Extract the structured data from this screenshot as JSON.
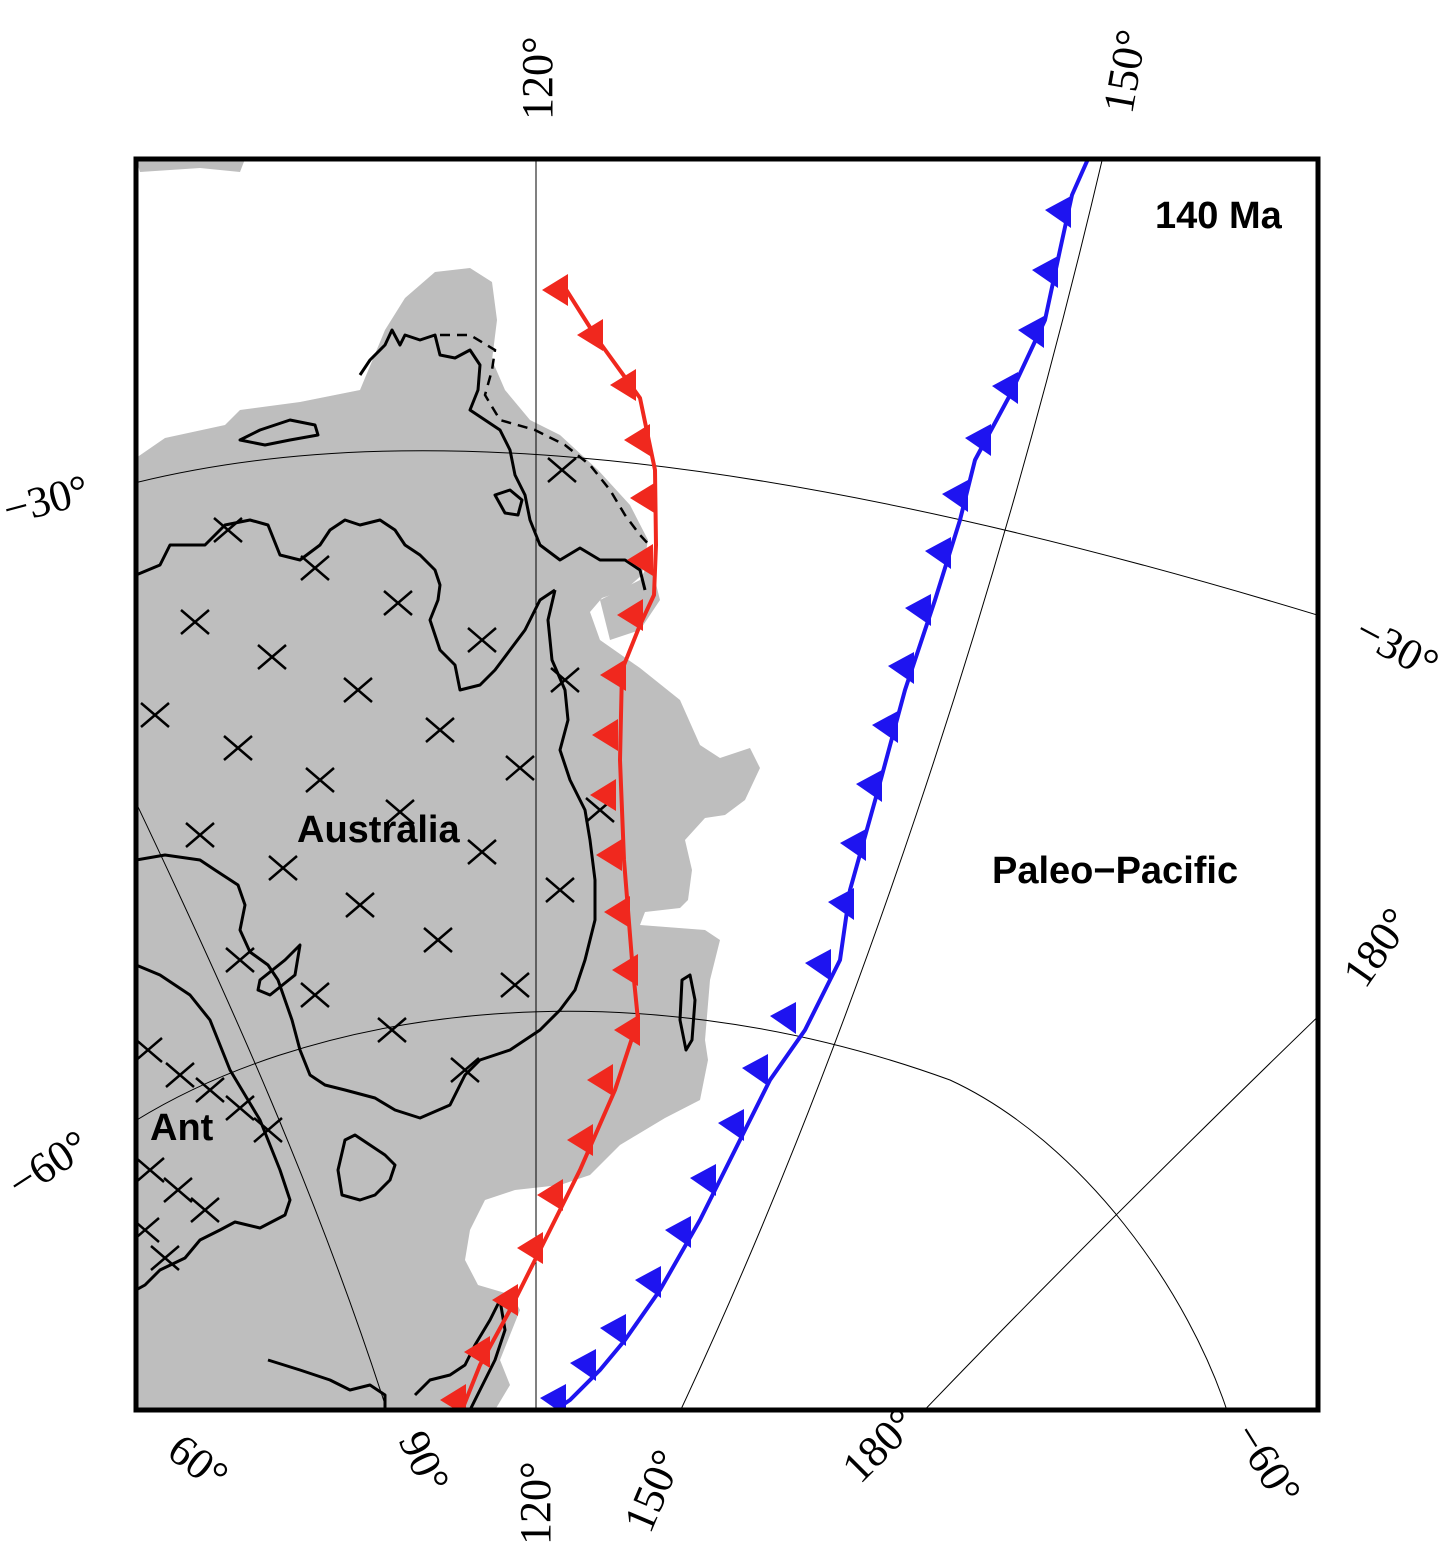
{
  "map": {
    "age_label": "140 Ma",
    "regions": {
      "australia": "Australia",
      "ant": "Ant",
      "paleo_pacific": "Paleo−Pacific"
    },
    "tick_labels": {
      "top_120": "120°",
      "top_150": "150°",
      "left_m30": "−30°",
      "left_m60": "−60°",
      "right_m30": "−30°",
      "right_180": "180°",
      "bottom_60": "60°",
      "bottom_90": "90°",
      "bottom_120": "120°",
      "bottom_150": "150°",
      "bottom_180": "180°",
      "bottom_m60": "−60°"
    },
    "colors": {
      "land": "#bebebe",
      "subduction_west": "#f0281e",
      "subduction_east": "#1e14f0",
      "frame": "#000000"
    },
    "features": {
      "subduction_west": "subduction zone (red, teeth facing west)",
      "subduction_east": "subduction zone (blue, teeth facing west)"
    }
  }
}
